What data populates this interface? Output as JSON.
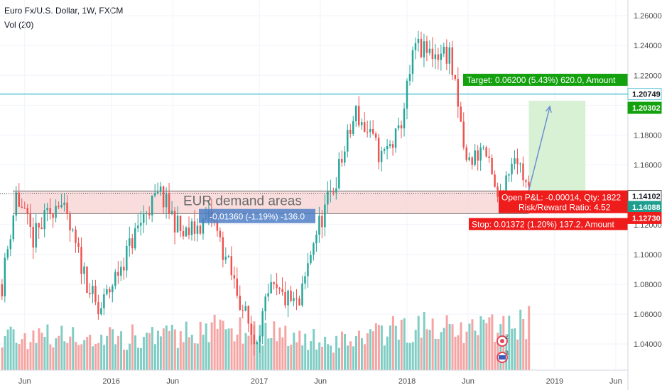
{
  "header": {
    "title": "Euro Fx/U.S. Dollar, 1W, FXCM",
    "volume_label": "Vol (20)"
  },
  "price_axis": {
    "ticks": [
      "1.26000",
      "1.24000",
      "1.22000",
      "1.20000",
      "1.18000",
      "1.16000",
      "1.14000",
      "1.12000",
      "1.10000",
      "1.08000",
      "1.06000",
      "1.04000"
    ],
    "tick_values": [
      1.26,
      1.24,
      1.22,
      1.2,
      1.18,
      1.16,
      1.14,
      1.12,
      1.1,
      1.08,
      1.06,
      1.04
    ]
  },
  "time_axis": {
    "labels": [
      "Jun",
      "2016",
      "Jun",
      "2017",
      "Jun",
      "2018",
      "Jun",
      "2019",
      "Jun"
    ]
  },
  "drawings": {
    "demand_zone_label": "EUR demand areas",
    "measure_label": "-0.01360 (-1.19%) -136.0",
    "target_label": "Target: 0.06200 (5.43%) 620.0, Amount",
    "open_pl_label": "Open P&L: -0.00014, Qty: 1822",
    "risk_reward_label": "Risk/Reward Ratio: 4.52",
    "stop_label": "Stop: 0.01372 (1.20%) 137.2, Amount"
  },
  "price_tags": [
    {
      "label": "1.20749",
      "value": 1.20749,
      "bg": "#ffffff",
      "fg": "#131722",
      "border": "#5cc4d6"
    },
    {
      "label": "1.20302",
      "value": 1.20302,
      "bg": "#13a10e",
      "fg": "#ffffff",
      "border": "#13a10e"
    },
    {
      "label": "1.14102",
      "value": 1.14102,
      "bg": "#ffffff",
      "fg": "#131722",
      "border": "#555555"
    },
    {
      "label": "1.14088",
      "value": 1.14088,
      "bg": "#1e9e8e",
      "fg": "#ffffff",
      "border": "#1e9e8e"
    },
    {
      "label": "1.12730",
      "value": 1.1273,
      "bg": "#ef1c1c",
      "fg": "#ffffff",
      "border": "#ef1c1c"
    }
  ],
  "events": {
    "earnings_badge_1": "2",
    "earnings_badge_2": "3"
  },
  "colors": {
    "up": "#26a69a",
    "down": "#ef5350",
    "vol_up": "#7fcdc4",
    "vol_down": "#f4a4a2",
    "demand_zone_fill": "#f8d7d7",
    "horizontal_line": "#5cc4d6",
    "target_zone_fill": "#d4f0d0",
    "measure_box": "#4f7fc6"
  },
  "chart_data": {
    "type": "candlestick",
    "title": "Euro Fx/U.S. Dollar, 1W, FXCM",
    "interval": "1W",
    "x_range": [
      "2015-04",
      "2019-07"
    ],
    "ylim": [
      1.0225,
      1.2705
    ],
    "horizontal_lines": [
      1.20749
    ],
    "demand_zone": {
      "low": 1.1273,
      "high": 1.1425
    },
    "position": {
      "entry": 1.14102,
      "target": 1.20302,
      "stop": 1.1273,
      "entry_date": "2018-10-29",
      "end_date": "2019-03-18"
    },
    "anchors": [
      {
        "date": "2015-04-06",
        "close": 1.08
      },
      {
        "date": "2015-05-11",
        "close": 1.14
      },
      {
        "date": "2015-06-22",
        "close": 1.11
      },
      {
        "date": "2015-08-24",
        "close": 1.138
      },
      {
        "date": "2015-11-30",
        "close": 1.06
      },
      {
        "date": "2016-03-28",
        "close": 1.13
      },
      {
        "date": "2016-05-02",
        "close": 1.14
      },
      {
        "date": "2016-06-27",
        "close": 1.112
      },
      {
        "date": "2016-09-05",
        "close": 1.125
      },
      {
        "date": "2016-12-19",
        "close": 1.042
      },
      {
        "date": "2017-01-30",
        "close": 1.075
      },
      {
        "date": "2017-04-10",
        "close": 1.065
      },
      {
        "date": "2017-05-15",
        "close": 1.11
      },
      {
        "date": "2017-07-03",
        "close": 1.145
      },
      {
        "date": "2017-08-28",
        "close": 1.195
      },
      {
        "date": "2017-10-30",
        "close": 1.165
      },
      {
        "date": "2017-12-11",
        "close": 1.18
      },
      {
        "date": "2018-01-22",
        "close": 1.24
      },
      {
        "date": "2018-02-12",
        "close": 1.235
      },
      {
        "date": "2018-04-16",
        "close": 1.235
      },
      {
        "date": "2018-05-28",
        "close": 1.16
      },
      {
        "date": "2018-07-09",
        "close": 1.172
      },
      {
        "date": "2018-08-13",
        "close": 1.135
      },
      {
        "date": "2018-09-24",
        "close": 1.17
      },
      {
        "date": "2018-10-29",
        "close": 1.141
      }
    ],
    "volume": [
      {
        "date": "2015-04-06",
        "volume": 0.5
      },
      {
        "date": "2015-10-05",
        "volume": 0.45
      },
      {
        "date": "2016-05-02",
        "volume": 0.48
      },
      {
        "date": "2016-11-07",
        "volume": 0.62
      },
      {
        "date": "2017-04-10",
        "volume": 0.48
      },
      {
        "date": "2017-07-03",
        "volume": 0.4
      },
      {
        "date": "2018-01-22",
        "volume": 0.62
      },
      {
        "date": "2018-06-04",
        "volume": 0.58
      },
      {
        "date": "2018-10-29",
        "volume": 0.7
      }
    ]
  }
}
